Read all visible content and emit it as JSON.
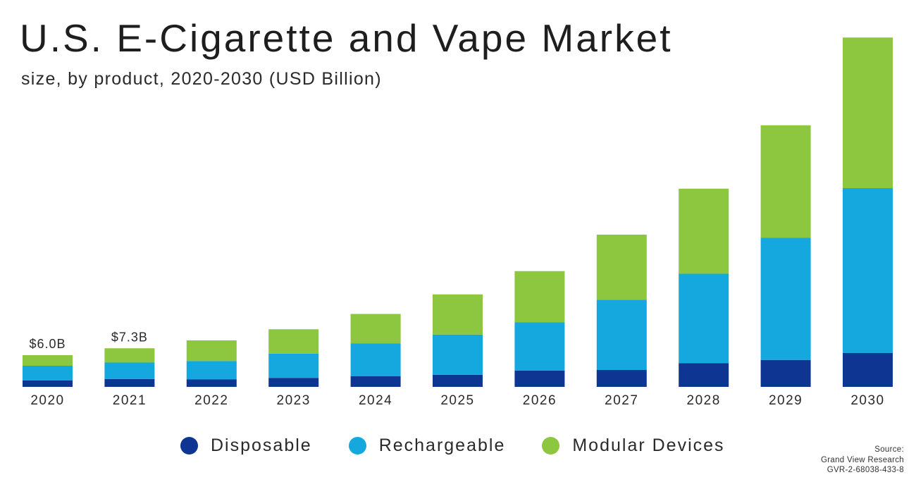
{
  "chart_data": {
    "type": "bar",
    "stacked": true,
    "title": "U.S. E-Cigarette and Vape Market",
    "subtitle": "size, by product, 2020-2030 (USD Billion)",
    "categories": [
      "2020",
      "2021",
      "2022",
      "2023",
      "2024",
      "2025",
      "2026",
      "2027",
      "2028",
      "2029",
      "2030"
    ],
    "series": [
      {
        "name": "Disposable",
        "color": "#0e3591",
        "values": [
          1.2,
          1.5,
          1.4,
          1.7,
          2.0,
          2.3,
          3.1,
          3.2,
          4.5,
          5.1,
          6.4
        ]
      },
      {
        "name": "Rechargeable",
        "color": "#14a8df",
        "values": [
          2.8,
          3.1,
          3.5,
          4.6,
          6.2,
          7.6,
          9.1,
          13.3,
          16.9,
          23.1,
          31.2
        ]
      },
      {
        "name": "Modular Devices",
        "color": "#8dc63f",
        "values": [
          2.0,
          2.7,
          3.9,
          4.6,
          5.6,
          7.6,
          9.7,
          12.3,
          16.1,
          21.3,
          28.5
        ]
      }
    ],
    "data_labels": [
      {
        "category": "2020",
        "text": "$6.0B"
      },
      {
        "category": "2021",
        "text": "$7.3B"
      }
    ],
    "xlabel": "",
    "ylabel": "",
    "ylim": [
      0,
      70
    ],
    "grid": false,
    "legend_position": "bottom"
  },
  "source": {
    "line1": "Source:",
    "line2": "Grand View Research",
    "line3": "GVR-2-68038-433-8"
  }
}
